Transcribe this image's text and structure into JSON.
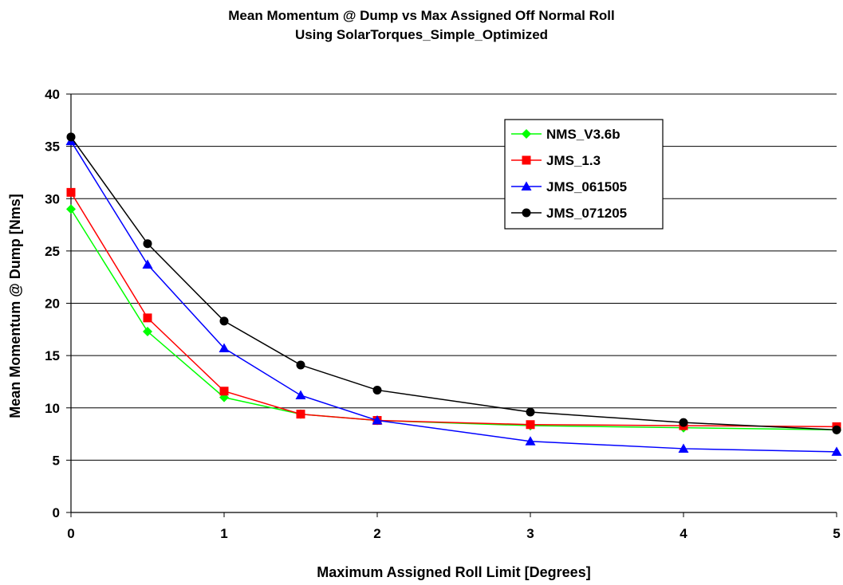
{
  "chart_data": {
    "type": "line",
    "title": "Mean Momentum @ Dump vs Max Assigned Off Normal  Roll",
    "subtitle": "Using SolarTorques_Simple_Optimized",
    "xlabel": "Maximum Assigned Roll Limit [Degrees]",
    "ylabel": "Mean Momentum @ Dump  [Nms]",
    "xlim": [
      0,
      5
    ],
    "ylim": [
      0,
      40
    ],
    "x_ticks": [
      0,
      1,
      2,
      3,
      4,
      5
    ],
    "y_ticks": [
      0,
      5,
      10,
      15,
      20,
      25,
      30,
      35,
      40
    ],
    "grid": "horizontal",
    "legend_position": "top-right",
    "x": [
      0,
      0.5,
      1,
      1.5,
      2,
      3,
      4,
      5
    ],
    "series": [
      {
        "name": "NMS_V3.6b",
        "color": "#00ff00",
        "marker": "diamond",
        "values": [
          29.0,
          17.3,
          11.0,
          9.4,
          8.8,
          8.3,
          8.1,
          7.9
        ]
      },
      {
        "name": "JMS_1.3",
        "color": "#ff0000",
        "marker": "square",
        "values": [
          30.6,
          18.6,
          11.6,
          9.4,
          8.8,
          8.4,
          8.3,
          8.2
        ]
      },
      {
        "name": "JMS_061505",
        "color": "#0000ff",
        "marker": "triangle",
        "values": [
          35.5,
          23.7,
          15.7,
          11.2,
          8.8,
          6.8,
          6.1,
          5.8
        ]
      },
      {
        "name": "JMS_071205",
        "color": "#000000",
        "marker": "circle",
        "values": [
          35.9,
          25.7,
          18.3,
          14.1,
          11.7,
          9.6,
          8.6,
          7.9
        ]
      }
    ]
  }
}
